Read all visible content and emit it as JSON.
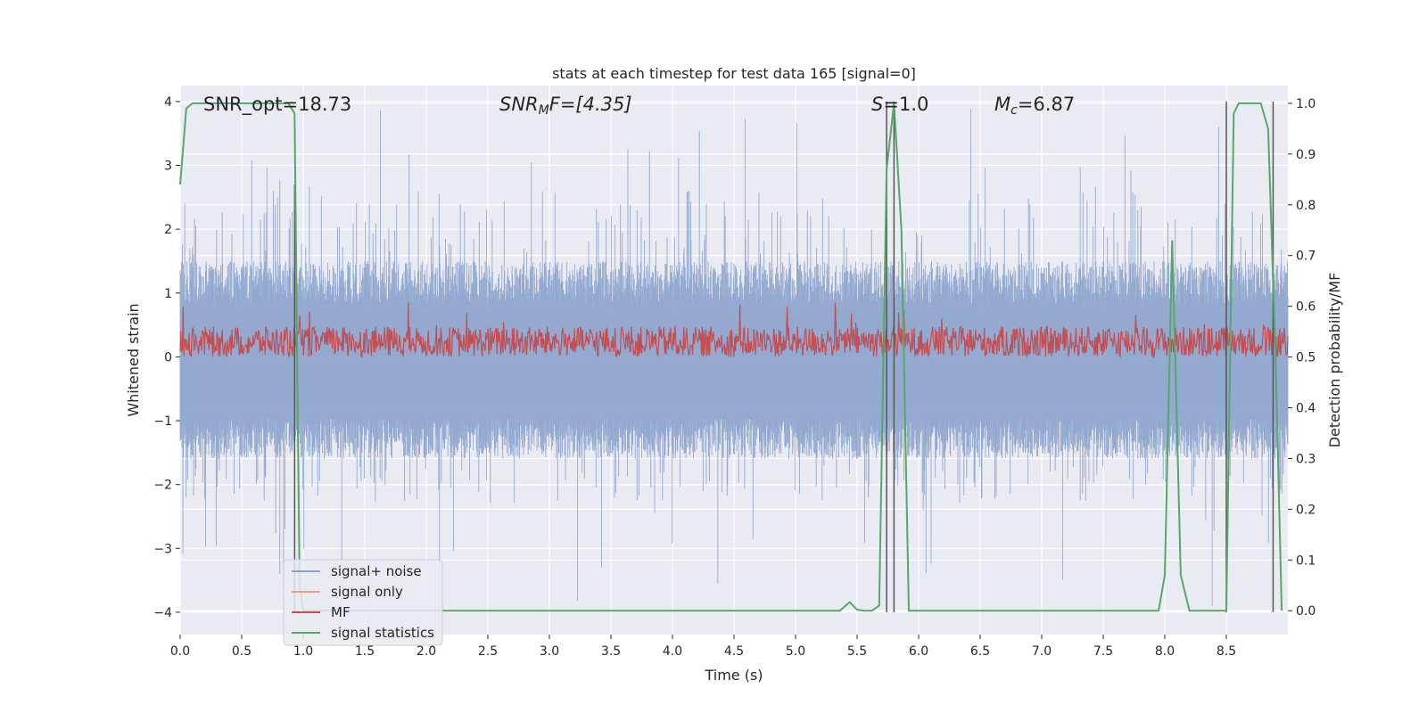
{
  "chart_data": {
    "type": "line",
    "title": "stats at each timestep for test data 165 [signal=0]",
    "xlabel": "Time (s)",
    "ylabel": "Whitened strain",
    "y2label": "Detection probability/MF",
    "xlim": [
      0.0,
      9.0
    ],
    "ylim": [
      -4.35,
      4.25
    ],
    "y2lim": [
      -0.047,
      1.035
    ],
    "grid": true,
    "legend_position": "lower-left",
    "x_ticks": [
      "0.0",
      "0.5",
      "1.0",
      "1.5",
      "2.0",
      "2.5",
      "3.0",
      "3.5",
      "4.0",
      "4.5",
      "5.0",
      "5.5",
      "6.0",
      "6.5",
      "7.0",
      "7.5",
      "8.0",
      "8.5"
    ],
    "x_tick_values": [
      0.0,
      0.5,
      1.0,
      1.5,
      2.0,
      2.5,
      3.0,
      3.5,
      4.0,
      4.5,
      5.0,
      5.5,
      6.0,
      6.5,
      7.0,
      7.5,
      8.0,
      8.5
    ],
    "y_ticks": [
      "4",
      "3",
      "2",
      "1",
      "0",
      "−1",
      "−2",
      "−3",
      "−4"
    ],
    "y_tick_values": [
      4,
      3,
      2,
      1,
      0,
      -1,
      -2,
      -3,
      -4
    ],
    "y2_ticks": [
      "1.0",
      "0.9",
      "0.8",
      "0.7",
      "0.6",
      "0.5",
      "0.4",
      "0.3",
      "0.2",
      "0.1",
      "0.0"
    ],
    "y2_tick_values": [
      1.0,
      0.9,
      0.8,
      0.7,
      0.6,
      0.5,
      0.4,
      0.3,
      0.2,
      0.1,
      0.0
    ],
    "annotations": {
      "snr_opt": "SNR_opt=18.73",
      "snr_mf_label": "SNR",
      "snr_mf_sub": "M",
      "snr_mf_rest": "F=[4.35]",
      "s_label": "S",
      "s_rest": "=1.0",
      "mc_label": "M",
      "mc_sub": "c",
      "mc_rest": "=6.87"
    },
    "series": [
      {
        "name": "signal+ noise",
        "color": "#8aa2cc",
        "description_range": "noise spanning approx -2.5..2.5 with spikes to ~3.9 / -4.0",
        "envelope": {
          "x": [
            0.0,
            9.0
          ],
          "typical_max": 1.5,
          "typical_min": -1.6,
          "spike_max": 3.9,
          "spike_min": -4.0
        }
      },
      {
        "name": "signal only",
        "color": "#e8a283",
        "x": [],
        "y": []
      },
      {
        "name": "MF",
        "color": "#c44e52",
        "axis": "y2",
        "envelope": {
          "x": [
            0.0,
            9.0
          ],
          "mean": 0.53,
          "min": 0.5,
          "max": 0.61
        }
      },
      {
        "name": "signal statistics",
        "color": "#55a868",
        "axis": "y2",
        "x": [
          0.0,
          0.05,
          0.1,
          0.2,
          0.5,
          0.8,
          0.88,
          0.93,
          0.97,
          1.0,
          2.0,
          3.0,
          4.0,
          5.0,
          5.36,
          5.44,
          5.5,
          5.56,
          5.62,
          5.68,
          5.74,
          5.8,
          5.86,
          5.92,
          6.0,
          7.0,
          7.95,
          8.0,
          8.06,
          8.13,
          8.2,
          8.4,
          8.5,
          8.56,
          8.6,
          8.64,
          8.7,
          8.78,
          8.84,
          8.9,
          8.95
        ],
        "y": [
          0.84,
          0.99,
          1.0,
          1.0,
          1.0,
          1.0,
          1.0,
          0.98,
          0.05,
          0.0,
          0.0,
          0.0,
          0.0,
          0.0,
          0.0,
          0.017,
          0.002,
          0.0,
          0.0,
          0.01,
          0.87,
          1.0,
          0.75,
          0.0,
          0.0,
          0.0,
          0.0,
          0.07,
          0.73,
          0.07,
          0.0,
          0.0,
          0.0,
          0.98,
          1.0,
          1.0,
          1.0,
          1.0,
          0.95,
          0.5,
          0.0
        ]
      }
    ],
    "vertical_markers": {
      "color": "#555555",
      "x": [
        0.93,
        5.74,
        5.8,
        8.5,
        8.88
      ],
      "y_top": [
        2.7,
        4.0,
        4.0,
        4.0,
        4.0
      ]
    },
    "legend": [
      "signal+ noise",
      "signal only",
      "MF",
      "signal statistics"
    ]
  }
}
